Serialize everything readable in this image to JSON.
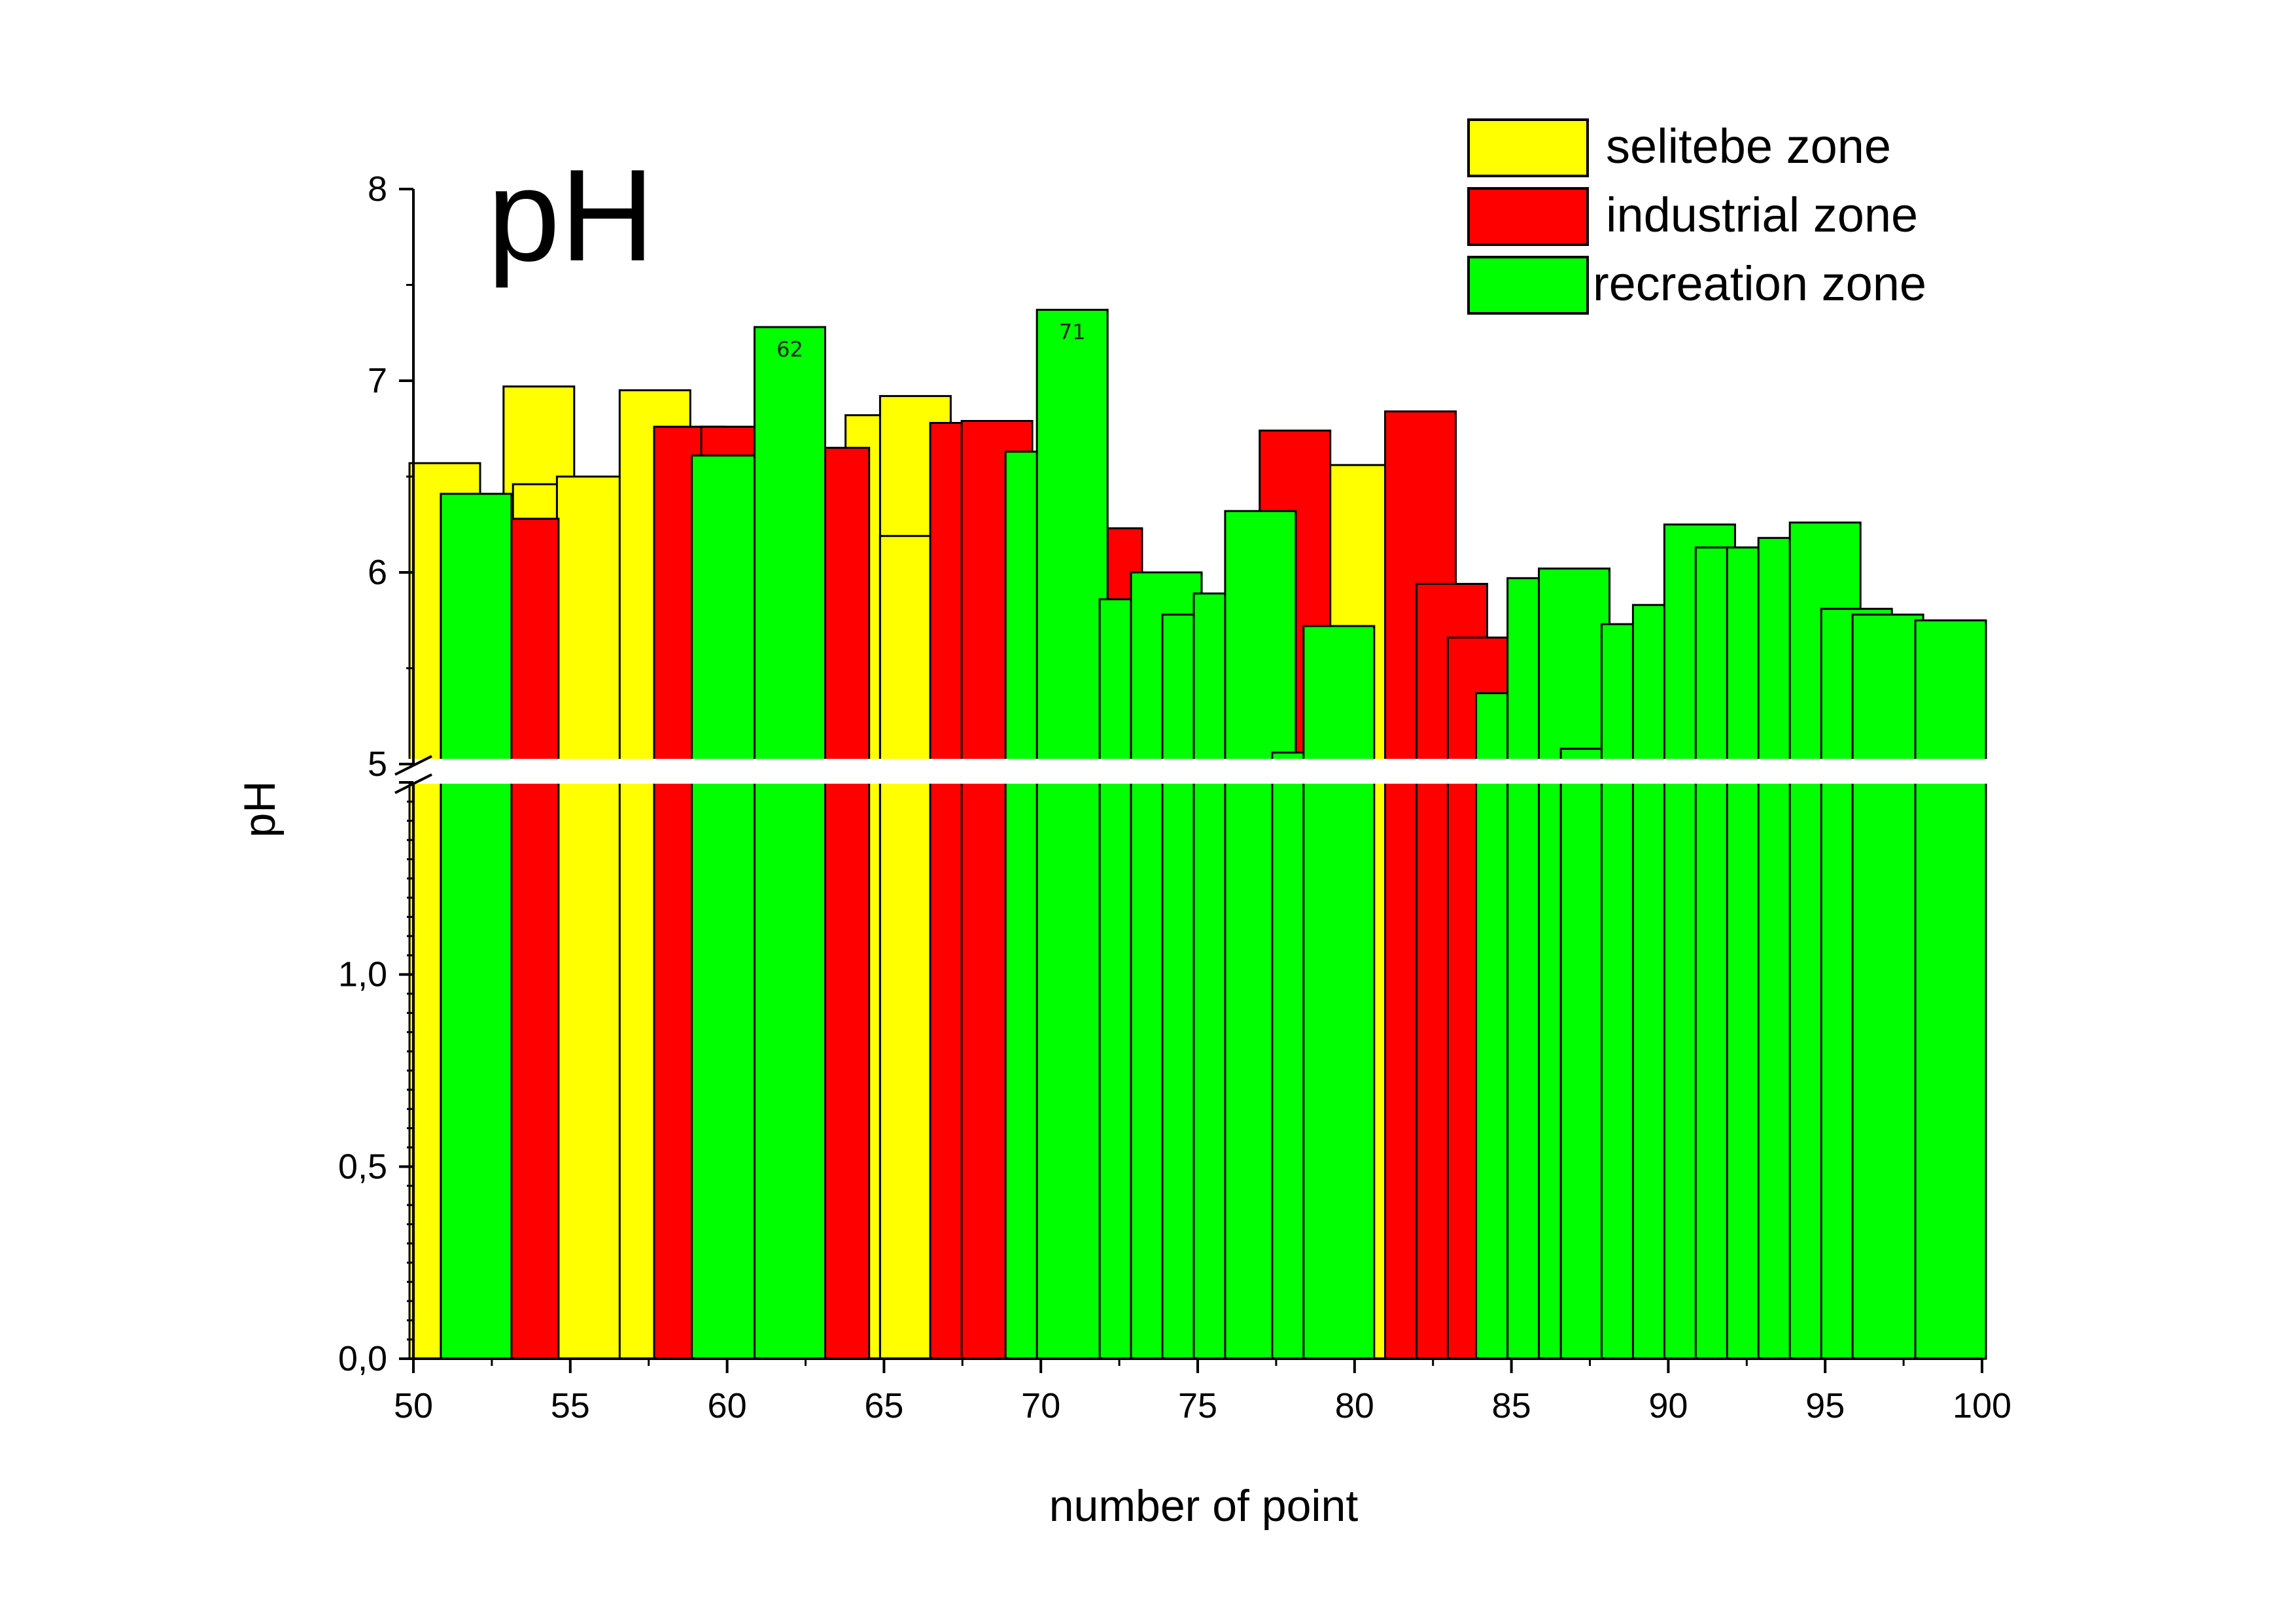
{
  "chart_data": {
    "type": "bar",
    "title": "pH",
    "xlabel": "number of point",
    "ylabel": "pH",
    "xlim": [
      50,
      100
    ],
    "x_ticks": [
      "50",
      "55",
      "60",
      "65",
      "70",
      "75",
      "80",
      "85",
      "90",
      "95",
      "100"
    ],
    "ylim_lower": [
      0,
      1.5
    ],
    "y_ticks_lower": [
      "0,0",
      "0,5",
      "1,0"
    ],
    "ylim_upper": [
      5,
      8
    ],
    "y_ticks_upper": [
      "5",
      "6",
      "7",
      "8"
    ],
    "axis_break": true,
    "grid": false,
    "legend_position": "top-right",
    "colors": {
      "selitebe": "#ffff00",
      "industrial": "#ff0000",
      "recreation": "#00ff00",
      "outline": "#000000"
    },
    "series": [
      {
        "name": "selitebe zone",
        "color": "#ffff00",
        "points": [
          {
            "x": 51.0,
            "y": 6.57
          },
          {
            "x": 54.0,
            "y": 6.97
          },
          {
            "x": 54.3,
            "y": 6.46
          },
          {
            "x": 55.7,
            "y": 6.5
          },
          {
            "x": 57.7,
            "y": 6.95
          },
          {
            "x": 64.9,
            "y": 6.82
          },
          {
            "x": 66.0,
            "y": 6.92
          },
          {
            "x": 66.0,
            "y": 6.19
          },
          {
            "x": 80.3,
            "y": 6.56
          }
        ]
      },
      {
        "name": "industrial zone",
        "color": "#ff0000",
        "points": [
          {
            "x": 53.5,
            "y": 6.28
          },
          {
            "x": 58.8,
            "y": 6.76
          },
          {
            "x": 60.3,
            "y": 6.76
          },
          {
            "x": 63.4,
            "y": 6.65
          },
          {
            "x": 67.6,
            "y": 6.78
          },
          {
            "x": 68.6,
            "y": 6.79
          },
          {
            "x": 72.1,
            "y": 6.23
          },
          {
            "x": 78.1,
            "y": 6.74
          },
          {
            "x": 82.1,
            "y": 6.84
          },
          {
            "x": 83.1,
            "y": 5.94
          },
          {
            "x": 84.1,
            "y": 5.66
          }
        ]
      },
      {
        "name": "recreation zone",
        "color": "#00ff00",
        "points": [
          {
            "x": 52.0,
            "y": 6.41
          },
          {
            "x": 60.0,
            "y": 6.61
          },
          {
            "x": 62.0,
            "y": 7.28,
            "label": "62"
          },
          {
            "x": 70.0,
            "y": 6.63
          },
          {
            "x": 71.0,
            "y": 7.37,
            "label": "71"
          },
          {
            "x": 73.0,
            "y": 5.86
          },
          {
            "x": 74.0,
            "y": 6.0
          },
          {
            "x": 75.0,
            "y": 5.78
          },
          {
            "x": 76.0,
            "y": 5.89
          },
          {
            "x": 77.0,
            "y": 6.32
          },
          {
            "x": 78.5,
            "y": 5.06
          },
          {
            "x": 79.5,
            "y": 5.72
          },
          {
            "x": 85.0,
            "y": 5.37
          },
          {
            "x": 86.0,
            "y": 5.97
          },
          {
            "x": 87.0,
            "y": 6.02
          },
          {
            "x": 87.7,
            "y": 5.08
          },
          {
            "x": 89.0,
            "y": 5.73
          },
          {
            "x": 90.0,
            "y": 5.83
          },
          {
            "x": 91.0,
            "y": 6.25
          },
          {
            "x": 92.0,
            "y": 6.13
          },
          {
            "x": 93.0,
            "y": 6.13
          },
          {
            "x": 94.0,
            "y": 6.18
          },
          {
            "x": 95.0,
            "y": 6.26
          },
          {
            "x": 96.0,
            "y": 5.81
          },
          {
            "x": 97.0,
            "y": 5.78
          },
          {
            "x": 99.0,
            "y": 5.75
          }
        ]
      }
    ]
  }
}
